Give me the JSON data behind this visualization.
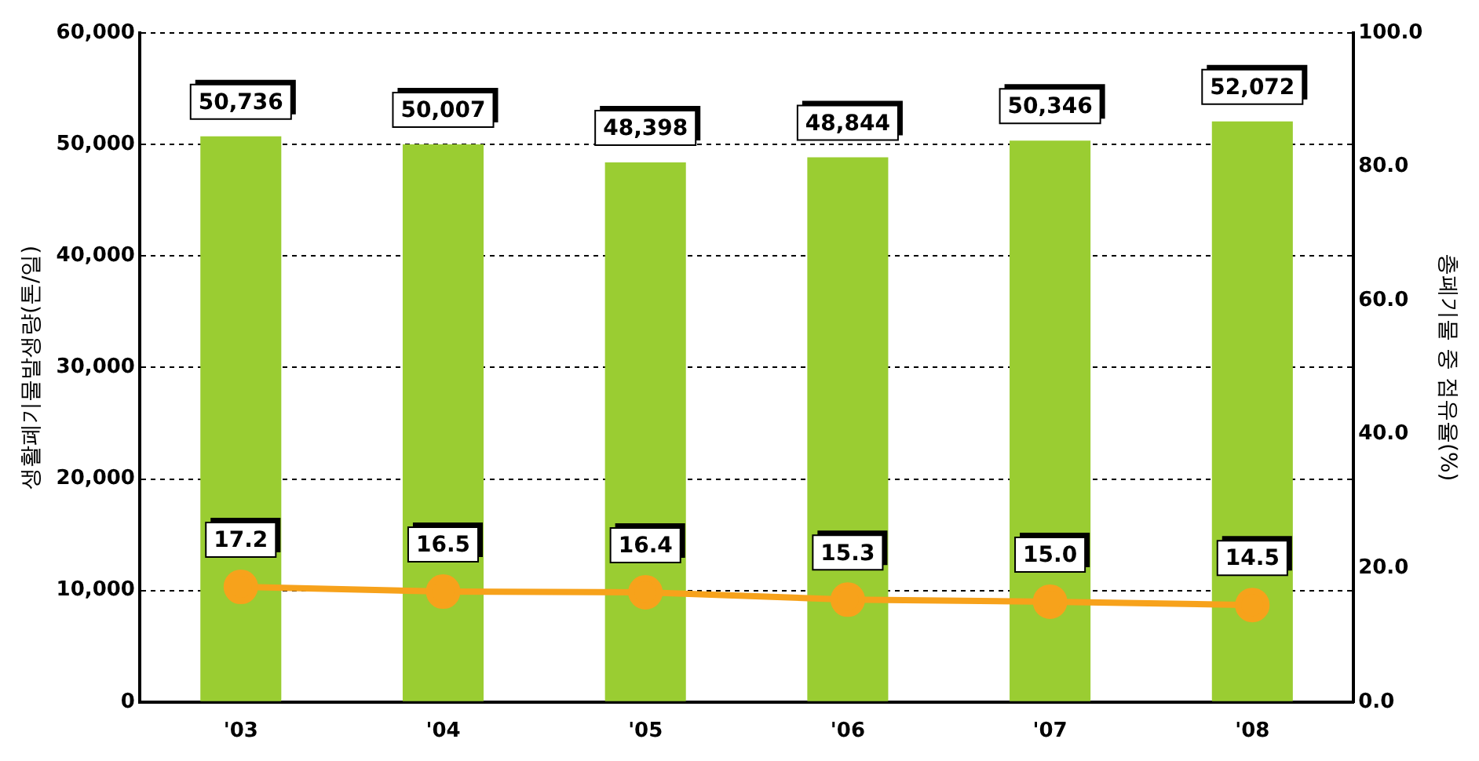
{
  "chart_data": {
    "type": "bar",
    "categories": [
      "'03",
      "'04",
      "'05",
      "'06",
      "'07",
      "'08"
    ],
    "ylabel": "생활폐기물발생량(톤/일)",
    "y2label": "총폐기물 중 점유율(%)",
    "ylim": [
      0,
      60000
    ],
    "yticks": [
      {
        "value": 0,
        "label": "0"
      },
      {
        "value": 10000,
        "label": "10,000"
      },
      {
        "value": 20000,
        "label": "20,000"
      },
      {
        "value": 30000,
        "label": "30,000"
      },
      {
        "value": 40000,
        "label": "40,000"
      },
      {
        "value": 50000,
        "label": "50,000"
      },
      {
        "value": 60000,
        "label": "60,000"
      }
    ],
    "y2lim": [
      0,
      100
    ],
    "y2ticks": [
      {
        "value": 0,
        "label": "0.0"
      },
      {
        "value": 20,
        "label": "20.0"
      },
      {
        "value": 40,
        "label": "40.0"
      },
      {
        "value": 60,
        "label": "60.0"
      },
      {
        "value": 80,
        "label": "80.0"
      },
      {
        "value": 100,
        "label": "100.0"
      }
    ],
    "grid": "y",
    "legend": false,
    "marker": "circle",
    "series": [
      {
        "color": "#9acd32",
        "values": [
          50736,
          50007,
          48398,
          48844,
          50346,
          52072
        ],
        "value_labels": [
          "50,736",
          "50,007",
          "48,398",
          "48,844",
          "50,346",
          "52,072"
        ]
      },
      {
        "type": "line",
        "axis": "y2",
        "color": "#f7a21b",
        "values": [
          17.2,
          16.5,
          16.4,
          15.3,
          15.0,
          14.5
        ],
        "value_labels": [
          "17.2",
          "16.5",
          "16.4",
          "15.3",
          "15.0",
          "14.5"
        ]
      }
    ]
  }
}
